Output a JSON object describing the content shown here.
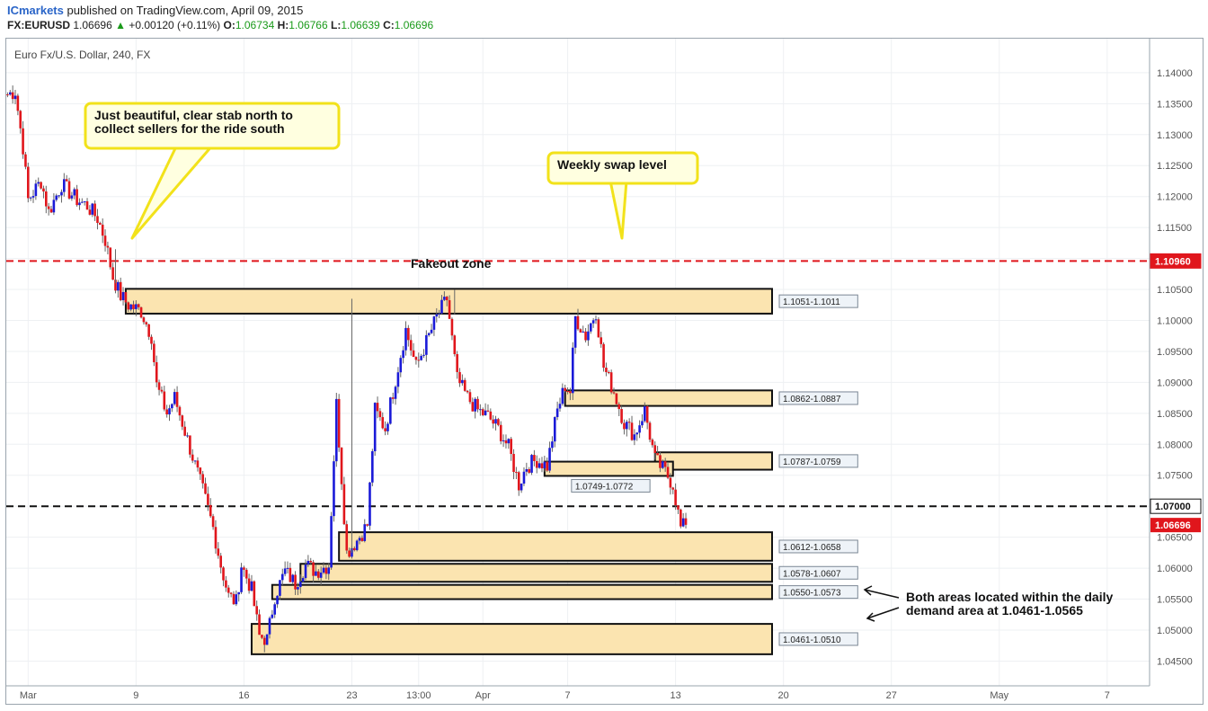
{
  "header": {
    "brand": "ICmarkets",
    "published": "published on TradingView.com, April 09, 2015",
    "symbol": "FX:EURUSD",
    "last": "1.06696",
    "change_arrow": "▲",
    "change": "+0.00120 (+0.11%)",
    "o_label": "O:",
    "o": "1.06734",
    "h_label": "H:",
    "h": "1.06766",
    "l_label": "L:",
    "l": "1.06639",
    "c_label": "C:",
    "c": "1.06696"
  },
  "chart_title": "Euro Fx/U.S. Dollar, 240, FX",
  "colors": {
    "up": "#1a1ad8",
    "down": "#e0161c",
    "zone_fill": "#fbe4b0",
    "swap_line": "#e0161c",
    "level_line": "#111111",
    "callout_border": "#f2e21a",
    "callout_fill": "#ffffe0"
  },
  "chart_data": {
    "type": "candlestick",
    "ylim": [
      1.041,
      1.1455
    ],
    "y_ticks": [
      "1.14000",
      "1.13500",
      "1.13000",
      "1.12500",
      "1.12000",
      "1.11500",
      "1.11000",
      "1.10500",
      "1.10000",
      "1.09500",
      "1.09000",
      "1.08500",
      "1.08000",
      "1.07500",
      "1.07000",
      "1.06500",
      "1.06000",
      "1.05500",
      "1.05000",
      "1.04500"
    ],
    "y_tick_values": [
      1.14,
      1.135,
      1.13,
      1.125,
      1.12,
      1.115,
      1.11,
      1.105,
      1.1,
      1.095,
      1.09,
      1.085,
      1.08,
      1.075,
      1.07,
      1.065,
      1.06,
      1.055,
      1.05,
      1.045
    ],
    "x_ticks": [
      "Mar",
      "9",
      "16",
      "23",
      "13:00",
      "Apr",
      "7",
      "13",
      "20",
      "27",
      "May",
      "7"
    ],
    "x_tick_bar_index": [
      8,
      50,
      92,
      134,
      160,
      185,
      218,
      260,
      302,
      344,
      386,
      428
    ],
    "bars_visible": 445,
    "horizontal_levels": [
      {
        "price": 1.1096,
        "label": "1.10960",
        "style": "dashed-red"
      },
      {
        "price": 1.07,
        "label": "1.07000",
        "style": "dashed-black"
      }
    ],
    "current_price": {
      "price": 1.06696,
      "label": "1.06696"
    },
    "zones": [
      {
        "label": "1.1051-1.1011",
        "low": 1.1011,
        "high": 1.1051,
        "start_bar": 47
      },
      {
        "label": "1.0862-1.0887",
        "low": 1.0862,
        "high": 1.0887,
        "start_bar": 218
      },
      {
        "label": "1.0787-1.0759",
        "low": 1.0759,
        "high": 1.0787,
        "start_bar": 253
      },
      {
        "label": "1.0749-1.0772",
        "low": 1.0749,
        "high": 1.0772,
        "start_bar": 210,
        "end_bar": 259
      },
      {
        "label": "1.0612-1.0658",
        "low": 1.0612,
        "high": 1.0658,
        "start_bar": 130
      },
      {
        "label": "1.0578-1.0607",
        "low": 1.0578,
        "high": 1.0607,
        "start_bar": 115
      },
      {
        "label": "1.0550-1.0573",
        "low": 1.055,
        "high": 1.0573,
        "start_bar": 104
      },
      {
        "label": "1.0461-1.0510",
        "low": 1.0461,
        "high": 1.051,
        "start_bar": 96
      }
    ],
    "key_points": [
      {
        "bar": 0,
        "price": 1.1365
      },
      {
        "bar": 3,
        "price": 1.137
      },
      {
        "bar": 6,
        "price": 1.128
      },
      {
        "bar": 8,
        "price": 1.1195
      },
      {
        "bar": 13,
        "price": 1.1225
      },
      {
        "bar": 16,
        "price": 1.1175
      },
      {
        "bar": 21,
        "price": 1.122
      },
      {
        "bar": 27,
        "price": 1.1195
      },
      {
        "bar": 31,
        "price": 1.1185
      },
      {
        "bar": 35,
        "price": 1.1165
      },
      {
        "bar": 38,
        "price": 1.113
      },
      {
        "bar": 41,
        "price": 1.107
      },
      {
        "bar": 44,
        "price": 1.104
      },
      {
        "bar": 47,
        "price": 1.1025
      },
      {
        "bar": 52,
        "price": 1.1015
      },
      {
        "bar": 56,
        "price": 1.0975
      },
      {
        "bar": 58,
        "price": 1.0895
      },
      {
        "bar": 62,
        "price": 1.085
      },
      {
        "bar": 65,
        "price": 1.0875
      },
      {
        "bar": 68,
        "price": 1.0835
      },
      {
        "bar": 72,
        "price": 1.078
      },
      {
        "bar": 76,
        "price": 1.0725
      },
      {
        "bar": 80,
        "price": 1.0665
      },
      {
        "bar": 83,
        "price": 1.0605
      },
      {
        "bar": 86,
        "price": 1.0555
      },
      {
        "bar": 89,
        "price": 1.0545
      },
      {
        "bar": 91,
        "price": 1.0605
      },
      {
        "bar": 95,
        "price": 1.0565
      },
      {
        "bar": 98,
        "price": 1.049
      },
      {
        "bar": 101,
        "price": 1.0485
      },
      {
        "bar": 104,
        "price": 1.0555
      },
      {
        "bar": 108,
        "price": 1.0595
      },
      {
        "bar": 112,
        "price": 1.0575
      },
      {
        "bar": 116,
        "price": 1.0605
      },
      {
        "bar": 120,
        "price": 1.0595
      },
      {
        "bar": 125,
        "price": 1.0605
      },
      {
        "bar": 128,
        "price": 1.0865
      },
      {
        "bar": 132,
        "price": 1.0625
      },
      {
        "bar": 136,
        "price": 1.0645
      },
      {
        "bar": 140,
        "price": 1.067
      },
      {
        "bar": 143,
        "price": 1.0855
      },
      {
        "bar": 147,
        "price": 1.0825
      },
      {
        "bar": 151,
        "price": 1.0905
      },
      {
        "bar": 155,
        "price": 1.0985
      },
      {
        "bar": 159,
        "price": 1.0925
      },
      {
        "bar": 163,
        "price": 1.0965
      },
      {
        "bar": 167,
        "price": 1.1005
      },
      {
        "bar": 171,
        "price": 1.1035
      },
      {
        "bar": 175,
        "price": 1.0905
      },
      {
        "bar": 179,
        "price": 1.0875
      },
      {
        "bar": 183,
        "price": 1.0855
      },
      {
        "bar": 187,
        "price": 1.0845
      },
      {
        "bar": 191,
        "price": 1.0825
      },
      {
        "bar": 195,
        "price": 1.0795
      },
      {
        "bar": 199,
        "price": 1.0735
      },
      {
        "bar": 202,
        "price": 1.0765
      },
      {
        "bar": 206,
        "price": 1.0775
      },
      {
        "bar": 210,
        "price": 1.0765
      },
      {
        "bar": 214,
        "price": 1.0855
      },
      {
        "bar": 217,
        "price": 1.0895
      },
      {
        "bar": 219,
        "price": 1.0885
      },
      {
        "bar": 221,
        "price": 1.1005
      },
      {
        "bar": 225,
        "price": 1.0975
      },
      {
        "bar": 229,
        "price": 1.1015
      },
      {
        "bar": 232,
        "price": 1.0925
      },
      {
        "bar": 236,
        "price": 1.0885
      },
      {
        "bar": 240,
        "price": 1.0835
      },
      {
        "bar": 244,
        "price": 1.0815
      },
      {
        "bar": 248,
        "price": 1.0855
      },
      {
        "bar": 252,
        "price": 1.0775
      },
      {
        "bar": 256,
        "price": 1.0755
      },
      {
        "bar": 259,
        "price": 1.0735
      },
      {
        "bar": 262,
        "price": 1.0665
      },
      {
        "bar": 264,
        "price": 1.067
      }
    ],
    "annotations": [
      {
        "text_lines": [
          "Just beautiful, clear stab north to",
          "collect sellers for the ride south"
        ]
      },
      {
        "text_lines": [
          "Weekly swap level"
        ]
      },
      {
        "text_lines": [
          "Fakeout zone"
        ]
      },
      {
        "text_lines": [
          "Both areas located within the daily",
          "demand area at 1.0461-1.0565"
        ]
      }
    ]
  }
}
